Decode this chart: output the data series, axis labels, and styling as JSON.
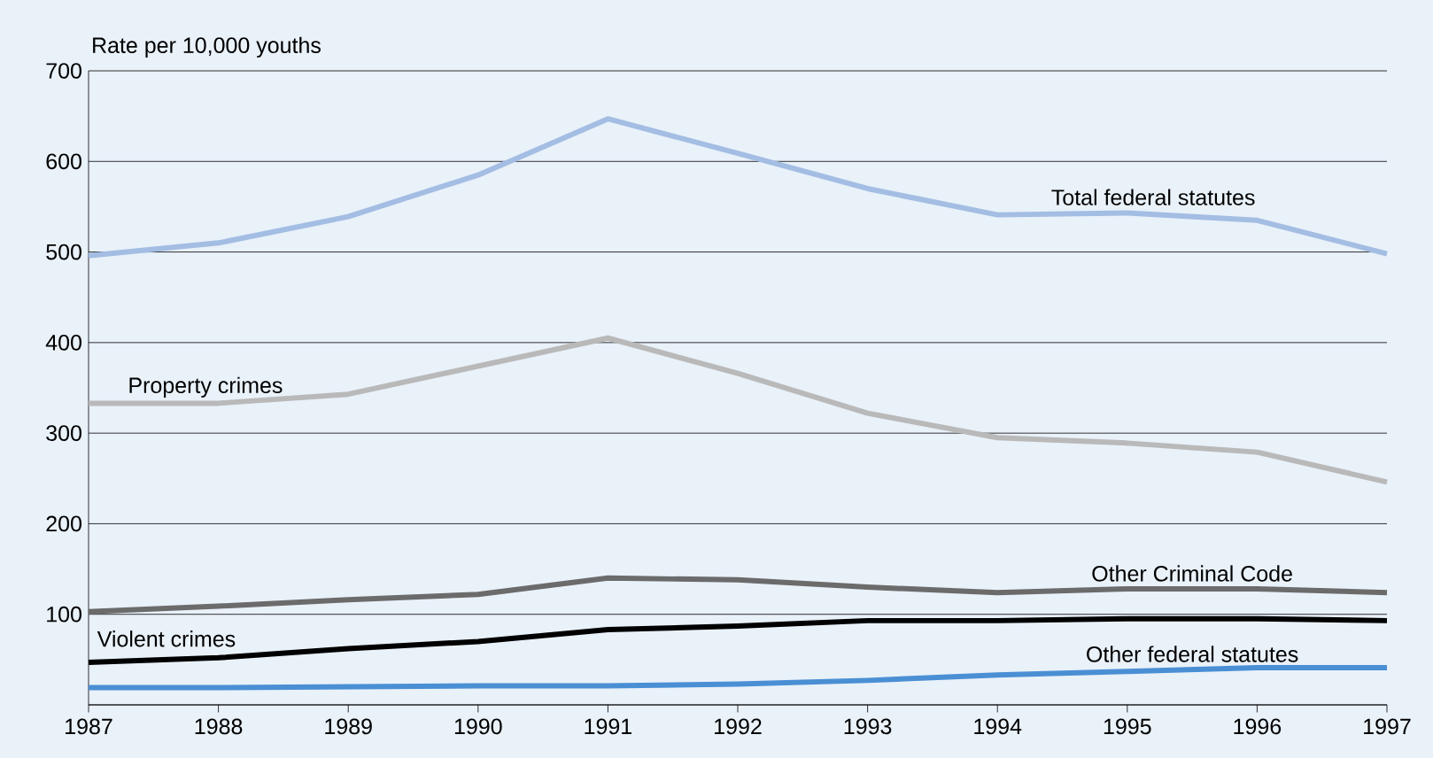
{
  "chart_data": {
    "type": "line",
    "ylabel": "Rate per 10,000 youths",
    "x": [
      1987,
      1988,
      1989,
      1990,
      1991,
      1992,
      1993,
      1994,
      1995,
      1996,
      1997
    ],
    "xlim": [
      1987,
      1997
    ],
    "xticks": [
      1987,
      1988,
      1989,
      1990,
      1991,
      1992,
      1993,
      1994,
      1995,
      1996,
      1997
    ],
    "ylim": [
      0,
      700
    ],
    "yticks": [
      {
        "value": 0,
        "label": null
      },
      100,
      200,
      300,
      400,
      500,
      600,
      700
    ],
    "grid": "y",
    "marker": "none",
    "line_style": "solid",
    "series": [
      {
        "name": "Total federal statutes",
        "color": "#a3bde3",
        "values": [
          496,
          510,
          539,
          585,
          647,
          609,
          570,
          541,
          543,
          535,
          498
        ]
      },
      {
        "name": "Property crimes",
        "color": "#b9b9b9",
        "values": [
          333,
          333,
          343,
          374,
          405,
          366,
          322,
          295,
          289,
          279,
          246
        ]
      },
      {
        "name": "Other Criminal Code",
        "color": "#6b6b6b",
        "values": [
          103,
          109,
          116,
          122,
          140,
          138,
          130,
          124,
          128,
          128,
          124
        ]
      },
      {
        "name": "Violent crimes",
        "color": "#000000",
        "values": [
          47,
          52,
          62,
          70,
          83,
          87,
          93,
          93,
          95,
          95,
          93
        ]
      },
      {
        "name": "Other federal statutes",
        "color": "#4a8fd4",
        "values": [
          19,
          19,
          20,
          21,
          21,
          23,
          27,
          33,
          37,
          41,
          41
        ]
      }
    ]
  }
}
